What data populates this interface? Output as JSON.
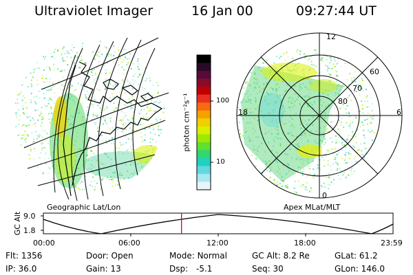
{
  "header": {
    "instrument": "Ultraviolet Imager",
    "date": "16 Jan 00",
    "time": "09:27:44 UT"
  },
  "left_panel": {
    "caption": "Geographic Lat/Lon"
  },
  "right_panel": {
    "caption": "Apex MLat/MLT",
    "mlt_labels": [
      "12",
      "18",
      "6",
      "0"
    ],
    "mlat_labels": [
      "60",
      "70",
      "80"
    ]
  },
  "colorbar": {
    "label": "photon cm⁻²s⁻¹",
    "ticks": [
      "100",
      "10"
    ],
    "colors": [
      "#000000",
      "#2a0a2a",
      "#5a0a3a",
      "#8a0a2a",
      "#c00000",
      "#e83020",
      "#f86a10",
      "#f8a000",
      "#f0d000",
      "#d8f000",
      "#a0e800",
      "#60e030",
      "#30d870",
      "#20d0c0",
      "#60d8e0",
      "#a8e8f0",
      "#e8f4f8"
    ]
  },
  "altitude_plot": {
    "y_title": "GC Alt",
    "y_ticks": [
      "9.0",
      "1.8"
    ],
    "x_ticks": [
      "00:00",
      "06:00",
      "12:00",
      "18:00",
      "23:59"
    ],
    "current_time_fraction": 0.395
  },
  "info": {
    "flt": {
      "label": "Flt:",
      "value": "1356"
    },
    "ip": {
      "label": "IP:",
      "value": "36.0"
    },
    "door": {
      "label": "Door:",
      "value": "Open"
    },
    "gain": {
      "label": "Gain:",
      "value": "13"
    },
    "mode": {
      "label": "Mode:",
      "value": "Normal"
    },
    "dsp": {
      "label": "Dsp:",
      "value": "-5.1"
    },
    "gcalt": {
      "label": "GC Alt:",
      "value": "8.2 Re"
    },
    "seq": {
      "label": "Seq:",
      "value": "30"
    },
    "glat": {
      "label": "GLat:",
      "value": "61.2"
    },
    "glon": {
      "label": "GLon:",
      "value": "146.0"
    }
  }
}
